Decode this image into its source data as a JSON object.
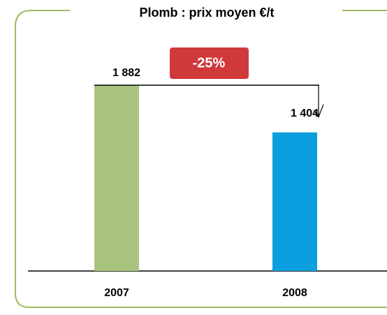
{
  "chart_data": {
    "type": "bar",
    "title": "Plomb : prix moyen €/t",
    "categories": [
      "2007",
      "2008"
    ],
    "values": [
      1882,
      1404
    ],
    "value_labels": [
      "1 882",
      "1 404"
    ],
    "colors": [
      "#a9c47f",
      "#0aa0e0"
    ],
    "annotation": "-25%"
  }
}
